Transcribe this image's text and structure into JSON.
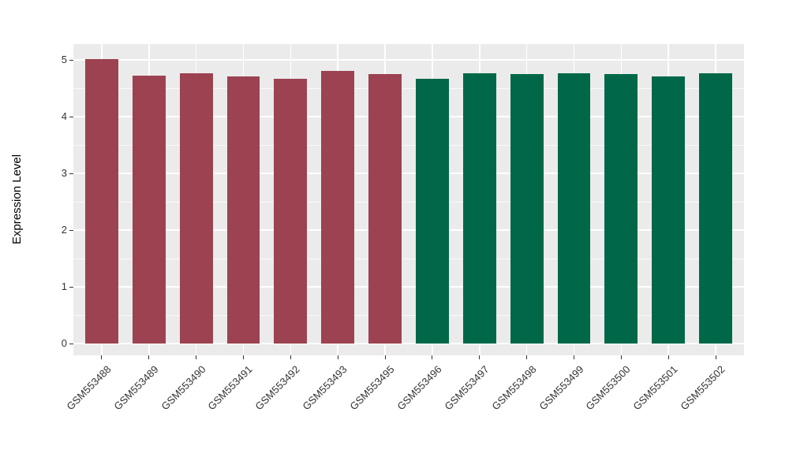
{
  "chart_data": {
    "type": "bar",
    "title": "",
    "xlabel": "",
    "ylabel": "Expression Level",
    "categories": [
      "GSM553488",
      "GSM553489",
      "GSM553490",
      "GSM553491",
      "GSM553492",
      "GSM553493",
      "GSM553495",
      "GSM553496",
      "GSM553497",
      "GSM553498",
      "GSM553499",
      "GSM553500",
      "GSM553501",
      "GSM553502"
    ],
    "values": [
      5.02,
      4.72,
      4.77,
      4.71,
      4.67,
      4.8,
      4.75,
      4.66,
      4.76,
      4.75,
      4.77,
      4.75,
      4.71,
      4.76
    ],
    "bar_colors": [
      "#9C4251",
      "#9C4251",
      "#9C4251",
      "#9C4251",
      "#9C4251",
      "#9C4251",
      "#9C4251",
      "#006849",
      "#006849",
      "#006849",
      "#006849",
      "#006849",
      "#006849",
      "#006849"
    ],
    "color_groups": [
      {
        "color": "#9C4251",
        "first": "GSM553488",
        "last": "GSM553495",
        "count": 7
      },
      {
        "color": "#006849",
        "first": "GSM553496",
        "last": "GSM553502",
        "count": 7
      }
    ],
    "ytick_labels": [
      "0",
      "1",
      "2",
      "3",
      "4",
      "5"
    ],
    "yticks": [
      0,
      1,
      2,
      3,
      4,
      5
    ],
    "ylim": [
      0,
      5.28
    ],
    "bar_width_fraction": 0.7,
    "grid": "white major gridlines at integers and category centers, white minor gridlines at halves",
    "legend": "none",
    "panel_background": "#EBEBEB",
    "gridline_color": "#FFFFFF",
    "tick_label_color": "#333333",
    "axis_title_color": "#000000",
    "figure_background": "#FFFFFF"
  }
}
